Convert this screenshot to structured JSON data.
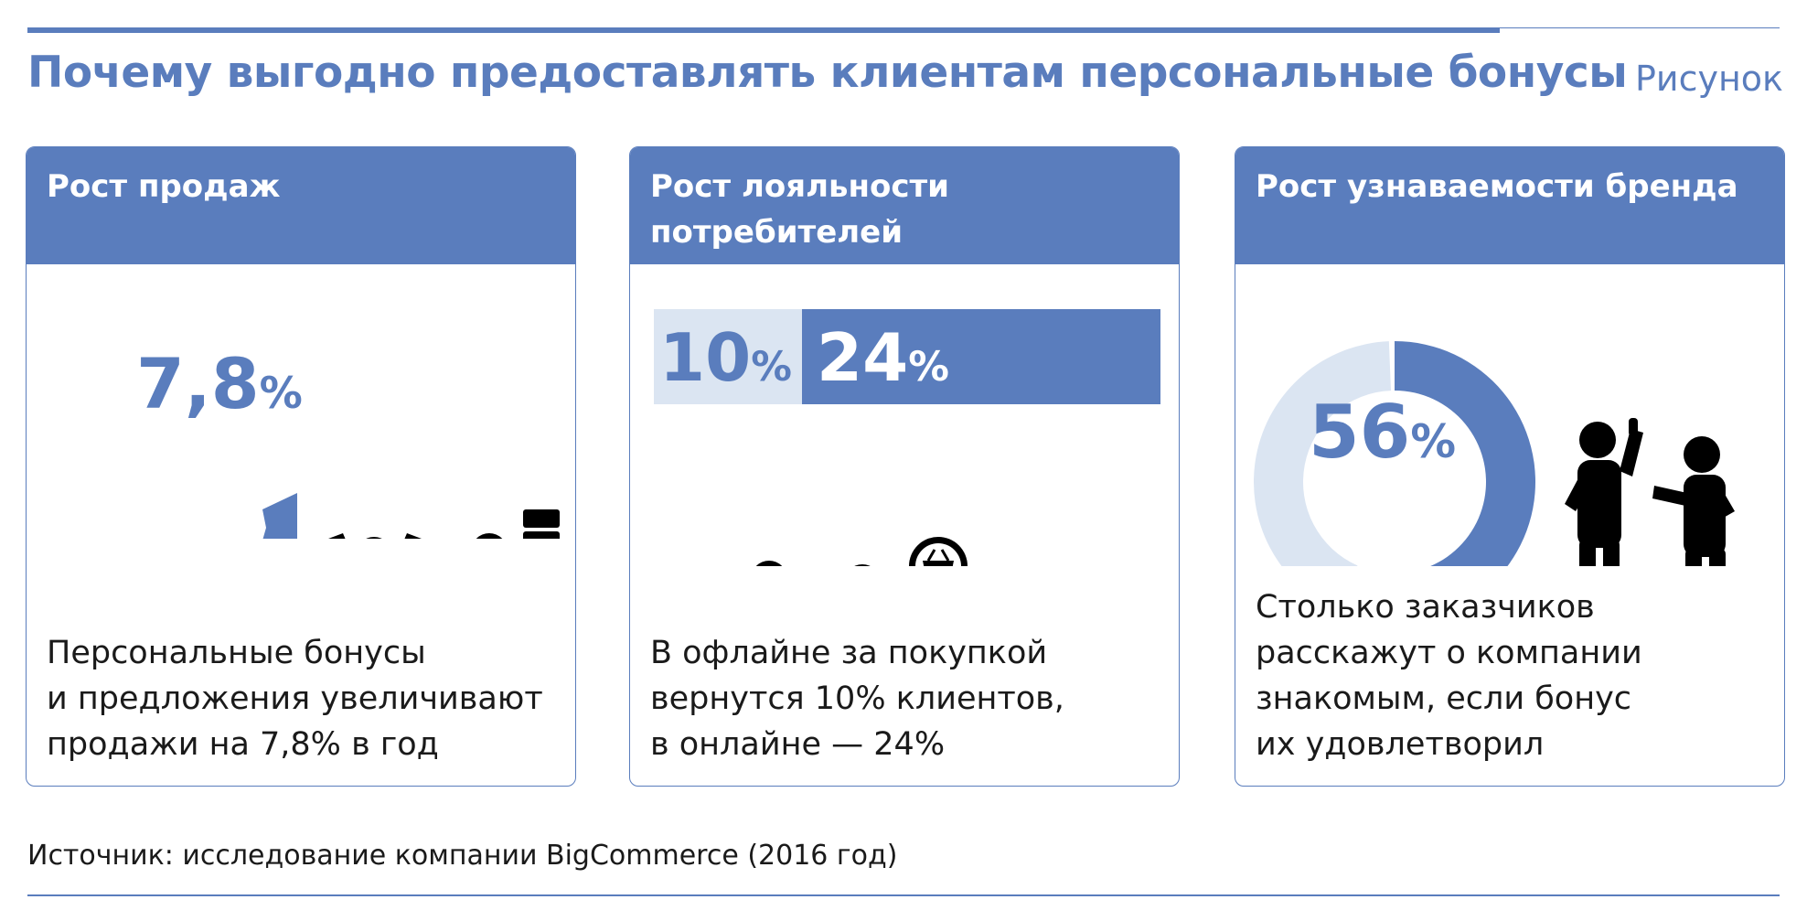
{
  "title": "Почему выгодно предоставлять клиентам персональные бонусы",
  "figure_label": "Рисунок",
  "colors": {
    "accent": "#5a7dbd",
    "light": "#dbe5f2",
    "ink": "#000000"
  },
  "cards": [
    {
      "header_lines": [
        "Рост продаж"
      ],
      "value": "7,8",
      "unit": "%",
      "text_lines": [
        "Персональные бонусы",
        "и предложения увеличивают",
        "продажи на 7,8% в год"
      ],
      "icons": [
        "rising-zigzag-chart-icon",
        "celebrating-person-percent-icon",
        "person-carrying-boxes-icon"
      ]
    },
    {
      "header_lines": [
        "Рост лояльности",
        "потребителей"
      ],
      "offline": {
        "value": "10",
        "unit": "%",
        "share": 0.1
      },
      "online": {
        "value": "24",
        "unit": "%",
        "share": 0.24
      },
      "text_lines": [
        "В офлайне за покупкой",
        "вернутся 10% клиентов,",
        "в онлайне — 24%"
      ],
      "icons": [
        "shopping-cart-icon",
        "person-with-cart-icon",
        "person-with-phone-icon",
        "basket-icon"
      ]
    },
    {
      "header_lines": [
        "Рост узнаваемости бренда"
      ],
      "value": "56",
      "unit": "%",
      "share": 0.56,
      "text_lines": [
        "Столько заказчиков",
        "расскажут о компании",
        "знакомым, если бонус",
        "их удовлетворил"
      ],
      "icons": [
        "donut-chart-icon",
        "person-thumbs-up-icon",
        "person-talking-icon"
      ]
    }
  ],
  "source": "Источник: исследование компании BigCommerce (2016 год)"
}
